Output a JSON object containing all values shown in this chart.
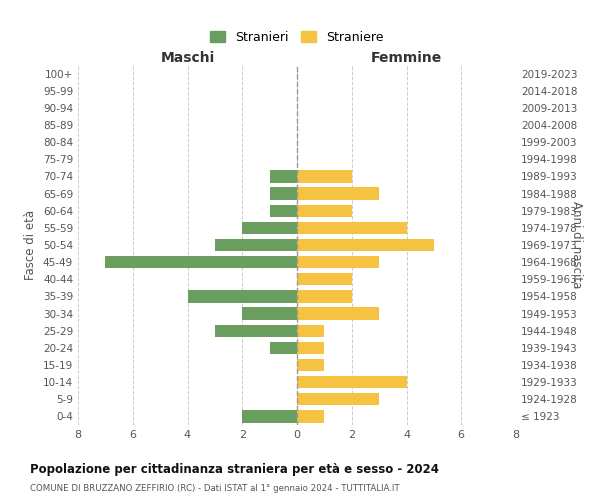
{
  "age_groups": [
    "100+",
    "95-99",
    "90-94",
    "85-89",
    "80-84",
    "75-79",
    "70-74",
    "65-69",
    "60-64",
    "55-59",
    "50-54",
    "45-49",
    "40-44",
    "35-39",
    "30-34",
    "25-29",
    "20-24",
    "15-19",
    "10-14",
    "5-9",
    "0-4"
  ],
  "birth_years": [
    "≤ 1923",
    "1924-1928",
    "1929-1933",
    "1934-1938",
    "1939-1943",
    "1944-1948",
    "1949-1953",
    "1954-1958",
    "1959-1963",
    "1964-1968",
    "1969-1973",
    "1974-1978",
    "1979-1983",
    "1984-1988",
    "1989-1993",
    "1994-1998",
    "1999-2003",
    "2004-2008",
    "2009-2013",
    "2014-2018",
    "2019-2023"
  ],
  "males": [
    0,
    0,
    0,
    0,
    0,
    0,
    1,
    1,
    1,
    2,
    3,
    7,
    0,
    4,
    2,
    3,
    1,
    0,
    0,
    0,
    2
  ],
  "females": [
    0,
    0,
    0,
    0,
    0,
    0,
    2,
    3,
    2,
    4,
    5,
    3,
    2,
    2,
    3,
    1,
    1,
    1,
    4,
    3,
    1
  ],
  "male_color": "#6a9e5f",
  "female_color": "#f5c242",
  "title": "Popolazione per cittadinanza straniera per età e sesso - 2024",
  "subtitle": "COMUNE DI BRUZZANO ZEFFIRIO (RC) - Dati ISTAT al 1° gennaio 2024 - TUTTITALIA.IT",
  "xlabel_left": "Maschi",
  "xlabel_right": "Femmine",
  "ylabel_left": "Fasce di età",
  "ylabel_right": "Anni di nascita",
  "legend_male": "Stranieri",
  "legend_female": "Straniere",
  "xlim": 8,
  "background_color": "#ffffff",
  "grid_color": "#cccccc"
}
